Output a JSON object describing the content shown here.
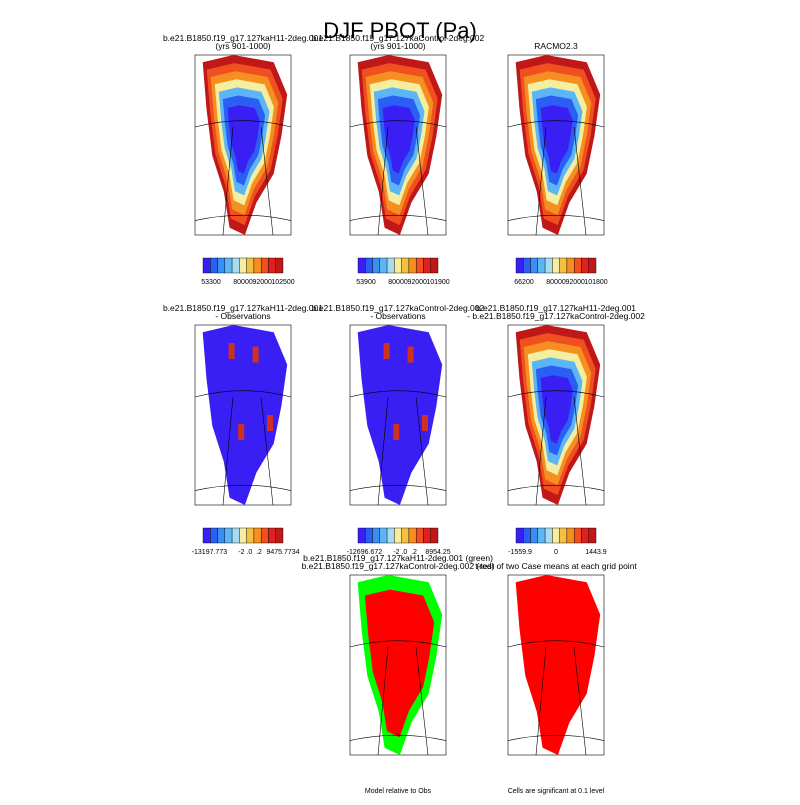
{
  "title": "DJF PBOT (Pa)",
  "panels": [
    {
      "title": [
        "b.e21.B1850.f19_g17.127kaH11-2deg.001",
        "(yrs 901-1000)"
      ],
      "colorbar_labels": [
        "53300",
        "80000",
        "92000",
        "102500"
      ]
    },
    {
      "title": [
        "b.e21.B1850.f19_g17.127kaControl-2deg.002",
        "(yrs 901-1000)"
      ],
      "colorbar_labels": [
        "53900",
        "80000",
        "92000",
        "101900"
      ]
    },
    {
      "title": [
        "RACMO2.3"
      ],
      "colorbar_labels": [
        "66200",
        "80000",
        "92000",
        "101800"
      ]
    },
    {
      "title": [
        "b.e21.B1850.f19_g17.127kaH11-2deg.001",
        "- Observations"
      ],
      "colorbar_labels": [
        "-13197.773",
        "-2",
        ".0",
        ".2",
        "9475.7734"
      ]
    },
    {
      "title": [
        "b.e21.B1850.f19_g17.127kaControl-2deg.002",
        "- Observations"
      ],
      "colorbar_labels": [
        "-12696.672",
        "-2",
        ".0",
        ".2",
        "8954.25"
      ]
    },
    {
      "title": [
        "b.e21.B1850.f19_g17.127kaH11-2deg.001",
        "- b.e21.B1850.f19_g17.127kaControl-2deg.002"
      ],
      "colorbar_labels": [
        "-1559.9",
        "0",
        "1443.9"
      ]
    },
    {
      "title": [
        "b.e21.B1850.f19_g17.127kaH11-2deg.001 (green)",
        "b.e21.B1850.f19_g17.127kaControl-2deg.002 (red)"
      ],
      "caption": "Model relative to Obs"
    },
    {
      "title": [
        "t-test of two Case means at each grid point"
      ],
      "caption": "Cells are significant at 0.1 level"
    }
  ]
}
